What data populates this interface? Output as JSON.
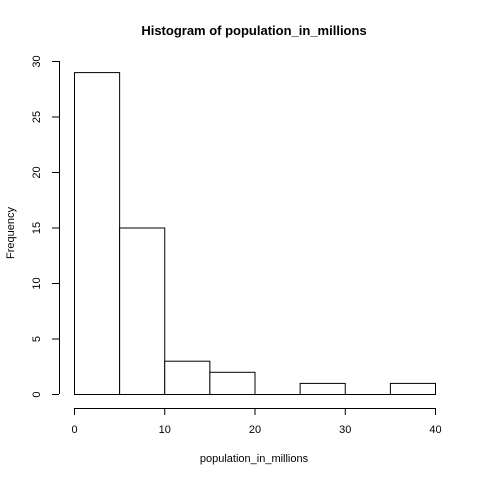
{
  "chart_data": {
    "type": "bar",
    "title": "Histogram of population_in_millions",
    "xlabel": "population_in_millions",
    "ylabel": "Frequency",
    "bins": [
      {
        "start": 0,
        "end": 5,
        "count": 29
      },
      {
        "start": 5,
        "end": 10,
        "count": 15
      },
      {
        "start": 10,
        "end": 15,
        "count": 3
      },
      {
        "start": 15,
        "end": 20,
        "count": 2
      },
      {
        "start": 20,
        "end": 25,
        "count": 0
      },
      {
        "start": 25,
        "end": 30,
        "count": 1
      },
      {
        "start": 30,
        "end": 35,
        "count": 0
      },
      {
        "start": 35,
        "end": 40,
        "count": 1
      }
    ],
    "xlim": [
      0,
      40
    ],
    "ylim": [
      0,
      30
    ],
    "xticks": [
      0,
      10,
      20,
      30,
      40
    ],
    "yticks": [
      0,
      5,
      10,
      15,
      20,
      25,
      30
    ],
    "grid": false,
    "colors": {
      "bar_fill": "#ffffff",
      "bar_stroke": "#000000"
    }
  }
}
